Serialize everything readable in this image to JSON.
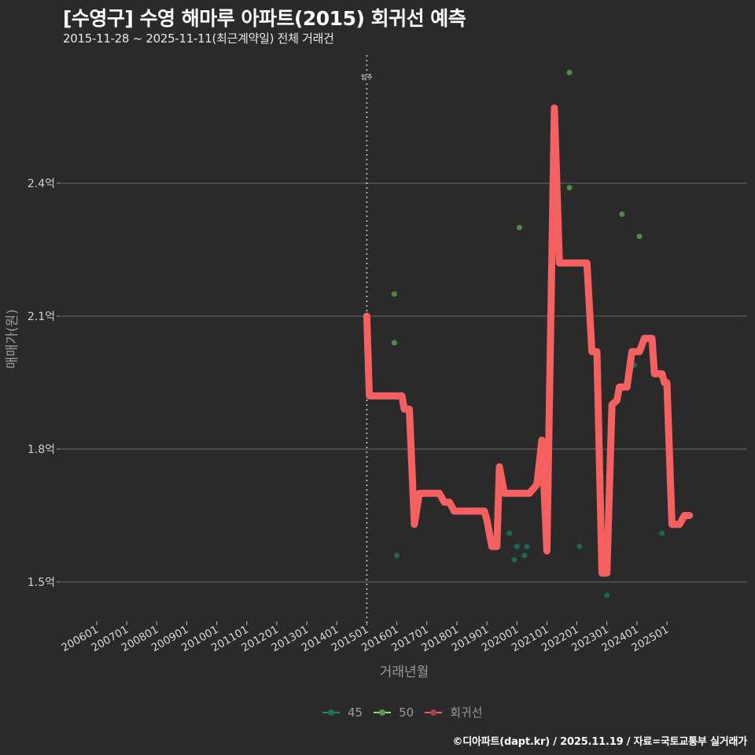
{
  "header": {
    "title": "[수영구] 수영 해마루 아파트(2015) 회귀선 예측",
    "subtitle": "2015-11-28 ~ 2025-11-11(최근계약일) 전체 거래건"
  },
  "annotation": {
    "move_in_label": "입주",
    "move_in_x": "201501"
  },
  "axes": {
    "ylabel": "매매가(원)",
    "xlabel": "거래년월",
    "y_ticks": [
      "1.5억",
      "1.8억",
      "2.1억",
      "2.4억"
    ],
    "x_ticks": [
      "200601",
      "200701",
      "200801",
      "200901",
      "201001",
      "201101",
      "201201",
      "201301",
      "201401",
      "201501",
      "201601",
      "201701",
      "201801",
      "201901",
      "202001",
      "202101",
      "202201",
      "202301",
      "202401",
      "202501"
    ]
  },
  "legend": {
    "items": [
      {
        "label": "45",
        "color": "#1f8a70"
      },
      {
        "label": "50",
        "color": "#7ed957"
      },
      {
        "label": "회귀선",
        "color": "#f25c5c"
      }
    ]
  },
  "caption": "©디아파트(dapt.kr) / 2025.11.19 / 자료=국토교통부 실거래가",
  "colors": {
    "background": "#2b2a2b",
    "grid": "#6a6a6a",
    "regression": "#f56060",
    "size45": "#1f6e5e",
    "size50": "#5a9a4a"
  },
  "chart_data": {
    "type": "line",
    "title": "[수영구] 수영 해마루 아파트(2015) 회귀선 예측",
    "subtitle": "2015-11-28 ~ 2025-11-11(최근계약일) 전체 거래건",
    "xlabel": "거래년월",
    "ylabel": "매매가(원)",
    "ylim": [
      1.41,
      2.7
    ],
    "xlim": [
      "200511",
      "202611"
    ],
    "y_unit": "억",
    "grid": true,
    "legend_position": "bottom",
    "vline": {
      "x": "201501",
      "label": "입주",
      "style": "dotted"
    },
    "series": [
      {
        "name": "회귀선",
        "type": "line",
        "points": [
          [
            "2015-01",
            2.1
          ],
          [
            "2015-02",
            1.92
          ],
          [
            "2015-06",
            1.92
          ],
          [
            "2016-03",
            1.92
          ],
          [
            "2016-04",
            1.89
          ],
          [
            "2016-06",
            1.89
          ],
          [
            "2016-08",
            1.63
          ],
          [
            "2016-10",
            1.7
          ],
          [
            "2017-06",
            1.7
          ],
          [
            "2017-08",
            1.68
          ],
          [
            "2017-10",
            1.68
          ],
          [
            "2017-12",
            1.66
          ],
          [
            "2018-06",
            1.66
          ],
          [
            "2018-12",
            1.66
          ],
          [
            "2019-01",
            1.64
          ],
          [
            "2019-03",
            1.58
          ],
          [
            "2019-05",
            1.58
          ],
          [
            "2019-06",
            1.76
          ],
          [
            "2019-08",
            1.7
          ],
          [
            "2020-01",
            1.7
          ],
          [
            "2020-06",
            1.7
          ],
          [
            "2020-09",
            1.72
          ],
          [
            "2020-11",
            1.82
          ],
          [
            "2021-01",
            1.57
          ],
          [
            "2021-04",
            2.57
          ],
          [
            "2021-06",
            2.22
          ],
          [
            "2022-01",
            2.22
          ],
          [
            "2022-05",
            2.22
          ],
          [
            "2022-07",
            2.02
          ],
          [
            "2022-09",
            2.02
          ],
          [
            "2022-11",
            1.52
          ],
          [
            "2023-01",
            1.52
          ],
          [
            "2023-03",
            1.9
          ],
          [
            "2023-05",
            1.91
          ],
          [
            "2023-06",
            1.94
          ],
          [
            "2023-09",
            1.94
          ],
          [
            "2023-11",
            2.02
          ],
          [
            "2024-02",
            2.02
          ],
          [
            "2024-04",
            2.05
          ],
          [
            "2024-07",
            2.05
          ],
          [
            "2024-08",
            1.97
          ],
          [
            "2024-11",
            1.97
          ],
          [
            "2024-12",
            1.95
          ],
          [
            "2025-01",
            1.95
          ],
          [
            "2025-03",
            1.63
          ],
          [
            "2025-06",
            1.63
          ],
          [
            "2025-08",
            1.65
          ],
          [
            "2025-10",
            1.65
          ]
        ]
      },
      {
        "name": "45",
        "type": "scatter",
        "points": [
          [
            "2016-01",
            1.56
          ],
          [
            "2019-10",
            1.61
          ],
          [
            "2019-12",
            1.55
          ],
          [
            "2020-01",
            1.58
          ],
          [
            "2020-04",
            1.56
          ],
          [
            "2020-05",
            1.58
          ],
          [
            "2022-02",
            1.58
          ],
          [
            "2023-01",
            1.47
          ],
          [
            "2023-12",
            1.99
          ],
          [
            "2024-11",
            1.61
          ]
        ]
      },
      {
        "name": "50",
        "type": "scatter",
        "points": [
          [
            "2015-12",
            2.15
          ],
          [
            "2015-12",
            2.04
          ],
          [
            "2020-02",
            2.3
          ],
          [
            "2021-10",
            2.65
          ],
          [
            "2021-10",
            2.39
          ],
          [
            "2023-07",
            2.33
          ],
          [
            "2024-02",
            2.28
          ]
        ]
      }
    ]
  }
}
